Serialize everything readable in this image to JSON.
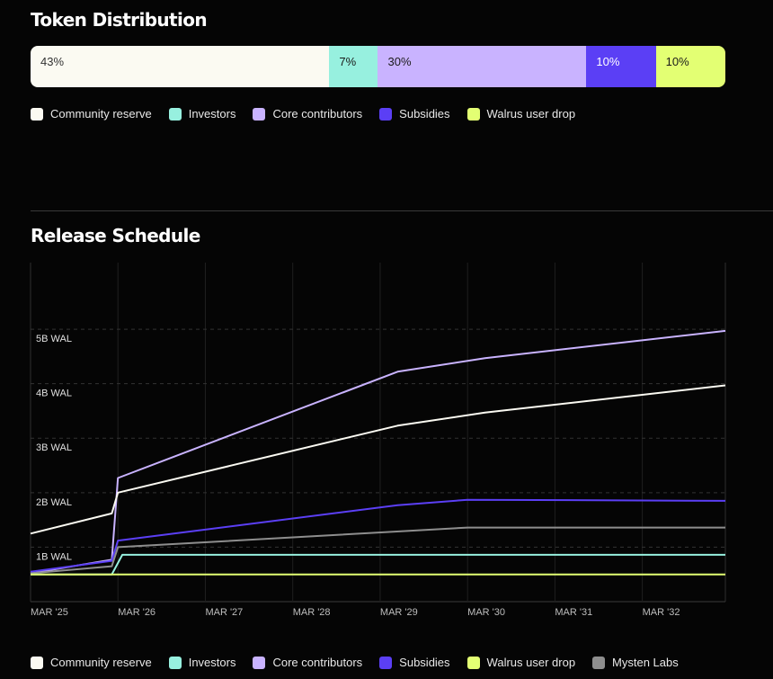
{
  "token_distribution": {
    "title": "Token Distribution",
    "segments": [
      {
        "label": "43%",
        "value": 43,
        "color": "#fbfaf2",
        "text_color": "#333333"
      },
      {
        "label": "7%",
        "value": 7,
        "color": "#97f0df",
        "text_color": "#1a1a1a"
      },
      {
        "label": "30%",
        "value": 30,
        "color": "#c9b3ff",
        "text_color": "#1a1a1a"
      },
      {
        "label": "10%",
        "value": 10,
        "color": "#5b3ff5",
        "text_color": "#ffffff"
      },
      {
        "label": "10%",
        "value": 10,
        "color": "#e3ff73",
        "text_color": "#1a1a1a"
      }
    ],
    "legend": [
      {
        "label": "Community reserve",
        "color": "#fbfaf2",
        "icon": "square-swatch"
      },
      {
        "label": "Investors",
        "color": "#97f0df",
        "icon": "square-swatch"
      },
      {
        "label": "Core contributors",
        "color": "#c9b3ff",
        "icon": "square-swatch"
      },
      {
        "label": "Subsidies",
        "color": "#5b3ff5",
        "icon": "square-swatch"
      },
      {
        "label": "Walrus user drop",
        "color": "#e3ff73",
        "icon": "square-swatch"
      }
    ]
  },
  "release_schedule": {
    "title": "Release Schedule",
    "legend": [
      {
        "label": "Community reserve",
        "color": "#fbfaf2",
        "icon": "square-swatch"
      },
      {
        "label": "Investors",
        "color": "#97f0df",
        "icon": "square-swatch"
      },
      {
        "label": "Core contributors",
        "color": "#c9b3ff",
        "icon": "square-swatch"
      },
      {
        "label": "Subsidies",
        "color": "#5b3ff5",
        "icon": "square-swatch"
      },
      {
        "label": "Walrus user drop",
        "color": "#e3ff73",
        "icon": "square-swatch"
      },
      {
        "label": "Mysten Labs",
        "color": "#8e8e8e",
        "icon": "square-swatch"
      }
    ]
  },
  "chart_data": {
    "type": "line",
    "title": "Release Schedule",
    "x_unit": "year",
    "xlim": [
      2025.0,
      2032.95
    ],
    "ylim": [
      0,
      5
    ],
    "y_unit": "B WAL",
    "y_ticks": [
      1,
      2,
      3,
      4,
      5
    ],
    "y_tick_labels": [
      "1B WAL",
      "2B WAL",
      "3B WAL",
      "4B WAL",
      "5B WAL"
    ],
    "x_ticks": [
      2025,
      2026,
      2027,
      2028,
      2029,
      2030,
      2031,
      2032
    ],
    "x_tick_labels": [
      "MAR '25",
      "MAR '26",
      "MAR '27",
      "MAR '28",
      "MAR '29",
      "MAR '30",
      "MAR '31",
      "MAR '32"
    ],
    "grid": true,
    "legend_position": "bottom",
    "series": [
      {
        "name": "Core contributors",
        "color": "#c9b3ff",
        "points": [
          [
            2025.0,
            0.52
          ],
          [
            2025.93,
            0.77
          ],
          [
            2026.0,
            2.27
          ],
          [
            2029.2,
            4.22
          ],
          [
            2030.2,
            4.47
          ],
          [
            2032.95,
            4.97
          ]
        ]
      },
      {
        "name": "Community reserve",
        "color": "#fbfaf2",
        "points": [
          [
            2025.0,
            1.25
          ],
          [
            2025.93,
            1.62
          ],
          [
            2026.0,
            2.0
          ],
          [
            2029.2,
            3.23
          ],
          [
            2030.2,
            3.47
          ],
          [
            2032.95,
            3.97
          ]
        ]
      },
      {
        "name": "Subsidies",
        "color": "#5b3ff5",
        "points": [
          [
            2025.0,
            0.55
          ],
          [
            2025.93,
            0.75
          ],
          [
            2026.0,
            1.12
          ],
          [
            2029.2,
            1.77
          ],
          [
            2030.0,
            1.87
          ],
          [
            2032.95,
            1.85
          ]
        ]
      },
      {
        "name": "Mysten Labs",
        "color": "#8e8e8e",
        "points": [
          [
            2025.0,
            0.52
          ],
          [
            2025.93,
            0.65
          ],
          [
            2026.0,
            1.0
          ],
          [
            2030.0,
            1.36
          ],
          [
            2032.95,
            1.36
          ]
        ]
      },
      {
        "name": "Investors",
        "color": "#97f0df",
        "points": [
          [
            2025.0,
            0.5
          ],
          [
            2025.93,
            0.5
          ],
          [
            2026.05,
            0.86
          ],
          [
            2032.95,
            0.86
          ]
        ]
      },
      {
        "name": "Walrus user drop",
        "color": "#e3ff73",
        "points": [
          [
            2025.0,
            0.5
          ],
          [
            2032.95,
            0.5
          ]
        ]
      }
    ]
  }
}
